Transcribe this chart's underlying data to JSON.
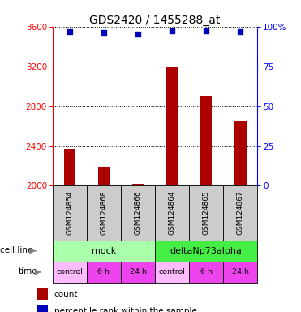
{
  "title": "GDS2420 / 1455288_at",
  "samples": [
    "GSM124854",
    "GSM124868",
    "GSM124866",
    "GSM124864",
    "GSM124865",
    "GSM124867"
  ],
  "counts": [
    2370,
    2185,
    2010,
    3200,
    2900,
    2650
  ],
  "percentile_ranks": [
    97,
    96,
    95,
    97.5,
    97.5,
    96.5
  ],
  "ylim_left": [
    2000,
    3600
  ],
  "ylim_right": [
    0,
    100
  ],
  "yticks_left": [
    2000,
    2400,
    2800,
    3200,
    3600
  ],
  "yticks_right": [
    0,
    25,
    50,
    75,
    100
  ],
  "bar_color": "#aa0000",
  "dot_color": "#0000bb",
  "bar_width": 0.35,
  "cell_line_labels": [
    "mock",
    "deltaNp73alpha"
  ],
  "cell_line_colors": [
    "#aaffaa",
    "#44ee44"
  ],
  "cell_line_spans": [
    [
      0,
      3
    ],
    [
      3,
      6
    ]
  ],
  "time_labels": [
    "control",
    "6 h",
    "24 h",
    "control",
    "6 h",
    "24 h"
  ],
  "time_colors": [
    "#ffbbff",
    "#ee44ee",
    "#ee44ee",
    "#ffbbff",
    "#ee44ee",
    "#ee44ee"
  ],
  "sample_bg_color": "#cccccc",
  "legend_count_color": "#aa0000",
  "legend_dot_color": "#0000bb",
  "right_tick_labels": [
    "0",
    "25",
    "50",
    "75",
    "100%"
  ]
}
